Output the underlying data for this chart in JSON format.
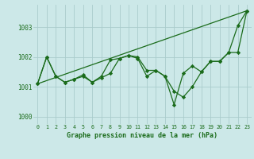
{
  "xlabel": "Graphe pression niveau de la mer (hPa)",
  "background_color": "#cce8e8",
  "grid_color": "#aacccc",
  "line_color": "#1a6b1a",
  "xlim": [
    -0.5,
    23.5
  ],
  "ylim": [
    999.75,
    1003.75
  ],
  "yticks": [
    1000,
    1001,
    1002,
    1003
  ],
  "xticks": [
    0,
    1,
    2,
    3,
    4,
    5,
    6,
    7,
    8,
    9,
    10,
    11,
    12,
    13,
    14,
    15,
    16,
    17,
    18,
    19,
    20,
    21,
    22,
    23
  ],
  "series_line": [
    [
      0,
      1001.1
    ],
    [
      23,
      1003.55
    ]
  ],
  "series_a": [
    1001.1,
    1002.0,
    1001.35,
    1001.15,
    1001.25,
    1001.4,
    1001.15,
    1001.35,
    1001.9,
    1001.95,
    1002.05,
    1002.0,
    1001.55,
    1001.55,
    1001.35,
    1000.4,
    1001.45,
    1001.7,
    1001.5,
    1001.85,
    1001.85,
    1002.15,
    1003.05,
    1003.55
  ],
  "series_b": [
    1001.1,
    1002.0,
    1001.35,
    1001.15,
    1001.25,
    1001.35,
    1001.15,
    1001.3,
    1001.45,
    1001.95,
    1002.05,
    1001.95,
    1001.35,
    1001.55,
    1001.35,
    1000.85,
    1000.65,
    1001.0,
    1001.5,
    1001.85,
    1001.85,
    1002.15,
    1002.15,
    1003.55
  ]
}
